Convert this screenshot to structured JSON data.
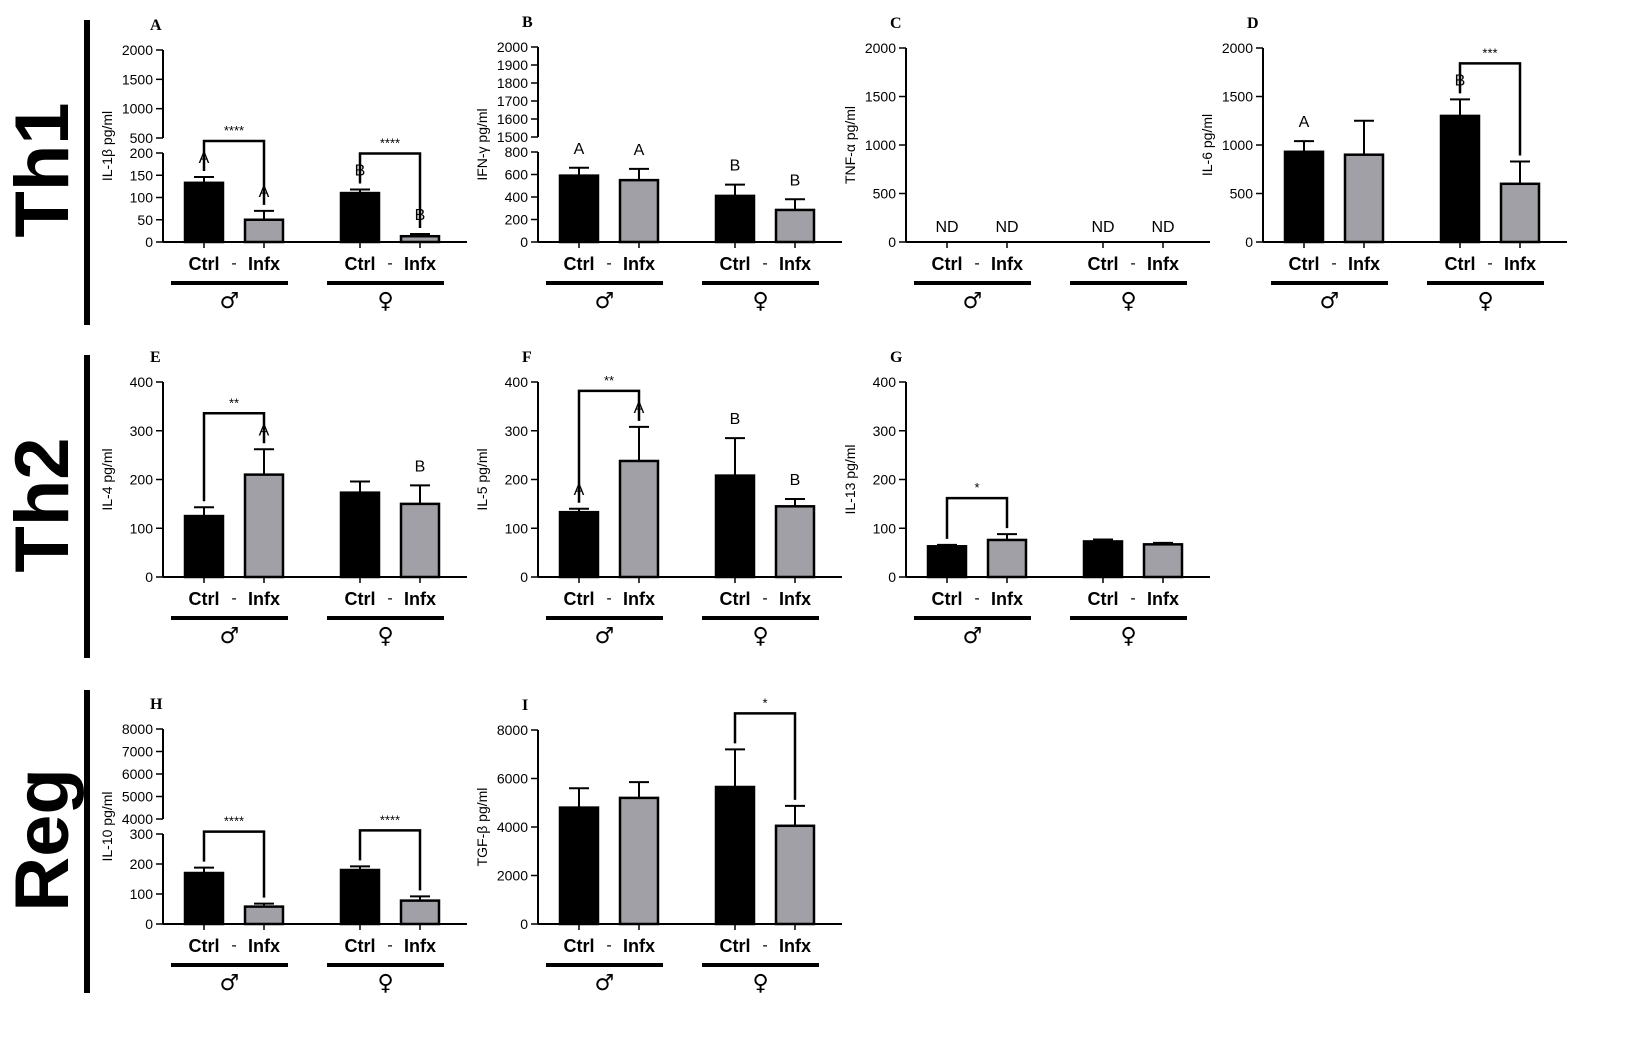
{
  "row_labels": [
    "Th1",
    "Th2",
    "Reg"
  ],
  "x_labels": {
    "ctrl": "Ctrl",
    "dash": "-",
    "infx": "Infx"
  },
  "sex_labels": {
    "male": "♂",
    "female": "♀"
  },
  "colors": {
    "ctrl": "#000000",
    "infx": "#a0a0a6",
    "axis": "#000000"
  },
  "chart_data": [
    {
      "letter": "A",
      "type": "bar",
      "ylabel": "IL-1β pg/ml",
      "ticks_low": [
        "0",
        "50",
        "100",
        "150",
        "200"
      ],
      "ticks_high": [
        "500",
        "1000",
        "1500",
        "2000"
      ],
      "ylim": [
        0,
        2000
      ],
      "categories": [
        "♂ Ctrl",
        "♂ Infx",
        "♀ Ctrl",
        "♀ Infx"
      ],
      "values": [
        133,
        50,
        110,
        13
      ],
      "errors": [
        13,
        20,
        8,
        5
      ],
      "letters": [
        "A",
        "A",
        "B",
        "B"
      ],
      "comparisons": [
        {
          "from": 0,
          "to": 1,
          "label": "****"
        },
        {
          "from": 2,
          "to": 3,
          "label": "****"
        }
      ]
    },
    {
      "letter": "B",
      "type": "bar",
      "ylabel": "IFN-γ pg/ml",
      "ticks_low": [
        "0",
        "200",
        "400",
        "600",
        "800"
      ],
      "ticks_high": [
        "1500",
        "1600",
        "1700",
        "1800",
        "1900",
        "2000"
      ],
      "ylim": [
        0,
        2000
      ],
      "categories": [
        "♂ Ctrl",
        "♂ Infx",
        "♀ Ctrl",
        "♀ Infx"
      ],
      "values": [
        590,
        550,
        410,
        285
      ],
      "errors": [
        70,
        100,
        100,
        95
      ],
      "letters": [
        "A",
        "A",
        "B",
        "B"
      ],
      "comparisons": []
    },
    {
      "letter": "C",
      "type": "bar",
      "ylabel": "TNF-α pg/ml",
      "ticks": [
        "0",
        "500",
        "1000",
        "1500",
        "2000"
      ],
      "ylim": [
        0,
        2000
      ],
      "categories": [
        "♂ Ctrl",
        "♂ Infx",
        "♀ Ctrl",
        "♀ Infx"
      ],
      "values": [
        null,
        null,
        null,
        null
      ],
      "errors": [
        null,
        null,
        null,
        null
      ],
      "letters": [
        "ND",
        "ND",
        "ND",
        "ND"
      ],
      "comparisons": []
    },
    {
      "letter": "D",
      "type": "bar",
      "ylabel": "IL-6 pg/ml",
      "ticks": [
        "0",
        "500",
        "1000",
        "1500",
        "2000"
      ],
      "ylim": [
        0,
        2000
      ],
      "categories": [
        "♂ Ctrl",
        "♂ Infx",
        "♀ Ctrl",
        "♀ Infx"
      ],
      "values": [
        930,
        900,
        1300,
        600
      ],
      "errors": [
        110,
        350,
        170,
        230
      ],
      "letters": [
        "A",
        "",
        "B",
        ""
      ],
      "comparisons": [
        {
          "from": 2,
          "to": 3,
          "label": "***"
        }
      ]
    },
    {
      "letter": "E",
      "type": "bar",
      "ylabel": "IL-4 pg/ml",
      "ticks": [
        "0",
        "100",
        "200",
        "300",
        "400"
      ],
      "ylim": [
        0,
        400
      ],
      "categories": [
        "♂ Ctrl",
        "♂ Infx",
        "♀ Ctrl",
        "♀ Infx"
      ],
      "values": [
        125,
        210,
        173,
        150
      ],
      "errors": [
        18,
        52,
        23,
        38
      ],
      "letters": [
        "",
        "A",
        "",
        "B"
      ],
      "comparisons": [
        {
          "from": 0,
          "to": 1,
          "label": "**"
        }
      ]
    },
    {
      "letter": "F",
      "type": "bar",
      "ylabel": "IL-5 pg/ml",
      "ticks": [
        "0",
        "100",
        "200",
        "300",
        "400"
      ],
      "ylim": [
        0,
        400
      ],
      "categories": [
        "♂ Ctrl",
        "♂ Infx",
        "♀ Ctrl",
        "♀ Infx"
      ],
      "values": [
        133,
        238,
        208,
        145
      ],
      "errors": [
        7,
        70,
        77,
        15
      ],
      "letters": [
        "A",
        "A",
        "B",
        "B"
      ],
      "comparisons": [
        {
          "from": 0,
          "to": 1,
          "label": "**"
        }
      ]
    },
    {
      "letter": "G",
      "type": "bar",
      "ylabel": "IL-13 pg/ml",
      "ticks": [
        "0",
        "100",
        "200",
        "300",
        "400"
      ],
      "ylim": [
        0,
        400
      ],
      "categories": [
        "♂ Ctrl",
        "♂ Infx",
        "♀ Ctrl",
        "♀ Infx"
      ],
      "values": [
        63,
        76,
        73,
        67
      ],
      "errors": [
        3,
        12,
        4,
        3
      ],
      "letters": [
        "",
        "",
        "",
        ""
      ],
      "comparisons": [
        {
          "from": 0,
          "to": 1,
          "label": "*"
        }
      ]
    },
    {
      "letter": "H",
      "type": "bar",
      "ylabel": "IL-10 pg/ml",
      "ticks_low": [
        "0",
        "100",
        "200",
        "300"
      ],
      "ticks_high": [
        "4000",
        "5000",
        "6000",
        "7000",
        "8000"
      ],
      "ylim": [
        0,
        8000
      ],
      "categories": [
        "♂ Ctrl",
        "♂ Infx",
        "♀ Ctrl",
        "♀ Infx"
      ],
      "values": [
        170,
        58,
        180,
        78
      ],
      "errors": [
        18,
        10,
        12,
        14
      ],
      "letters": [
        "",
        "",
        "",
        ""
      ],
      "comparisons": [
        {
          "from": 0,
          "to": 1,
          "label": "****"
        },
        {
          "from": 2,
          "to": 3,
          "label": "****"
        }
      ]
    },
    {
      "letter": "I",
      "type": "bar",
      "ylabel": "TGF-β pg/ml",
      "ticks": [
        "0",
        "2000",
        "4000",
        "6000",
        "8000"
      ],
      "ylim": [
        0,
        8000
      ],
      "categories": [
        "♂ Ctrl",
        "♂ Infx",
        "♀ Ctrl",
        "♀ Infx"
      ],
      "values": [
        4800,
        5200,
        5650,
        4050
      ],
      "errors": [
        800,
        650,
        1550,
        820
      ],
      "letters": [
        "",
        "",
        "",
        ""
      ],
      "comparisons": [
        {
          "from": 2,
          "to": 3,
          "label": "*"
        }
      ]
    }
  ]
}
